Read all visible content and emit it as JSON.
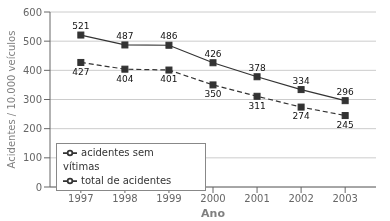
{
  "chart_data": {
    "type": "line",
    "x": [
      1997,
      1998,
      1999,
      2000,
      2001,
      2002,
      2003
    ],
    "xlabel": "Ano",
    "ylabel": "Acidentes / 10.000 veículos",
    "series": [
      {
        "name": "total de acidentes",
        "color": "#333333",
        "line_style": "solid",
        "marker": "square",
        "values": [
          521,
          487,
          486,
          426,
          378,
          334,
          296
        ]
      },
      {
        "name": "acidentes sem vítimas",
        "color": "#333333",
        "line_style": "dashed",
        "marker": "square",
        "values": [
          427,
          404,
          401,
          350,
          311,
          274,
          245
        ]
      }
    ],
    "xlim": [
      1996.3,
      2003.7
    ],
    "xticks": [
      1997,
      1998,
      1999,
      2000,
      2001,
      2002,
      2003
    ],
    "ylim": [
      0,
      600
    ],
    "yticks": [
      0,
      100,
      200,
      300,
      400,
      500,
      600
    ],
    "grid": "y",
    "legend": "lower left",
    "data_labels": true
  }
}
